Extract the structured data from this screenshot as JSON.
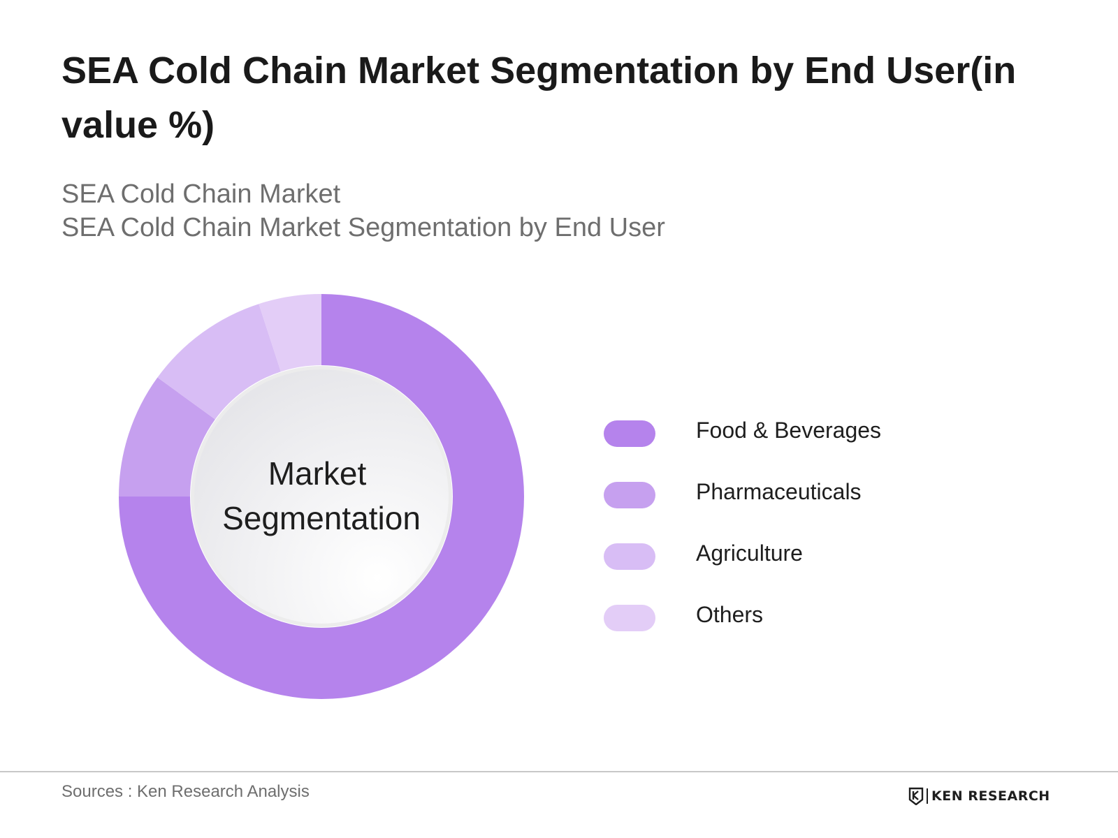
{
  "title": "SEA Cold Chain Market Segmentation by End User(in value %)",
  "subtitle_lines": [
    "SEA Cold Chain Market",
    "SEA Cold Chain Market Segmentation by End User"
  ],
  "center_label_lines": [
    "Market",
    "Segmentation"
  ],
  "source": "Sources : Ken Research Analysis",
  "brand": "KEN RESEARCH",
  "chart_data": {
    "type": "pie",
    "donut": true,
    "title": "SEA Cold Chain Market Segmentation by End User(in value %)",
    "categories": [
      "Food & Beverages",
      "Pharmaceuticals",
      "Agriculture",
      "Others"
    ],
    "values": [
      75,
      10,
      10,
      5
    ],
    "colors": [
      "#b583ec",
      "#c6a0ef",
      "#d8bdf5",
      "#e3cdf7"
    ],
    "legend_position": "right"
  }
}
